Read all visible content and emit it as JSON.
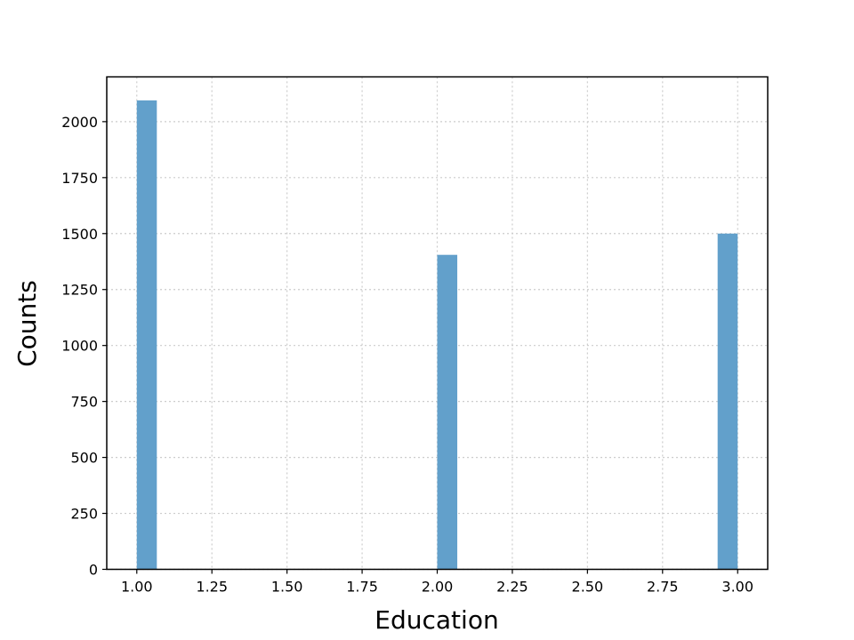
{
  "chart_data": {
    "type": "bar",
    "title": "",
    "xlabel": "Education",
    "ylabel": "Counts",
    "xlim": [
      0.9,
      3.1
    ],
    "ylim": [
      0,
      2200
    ],
    "bin_width": 0.0667,
    "bars": [
      {
        "x": 1.0,
        "value": 2095
      },
      {
        "x": 2.0,
        "value": 1405
      },
      {
        "x": 2.9333,
        "value": 1500
      }
    ],
    "x_ticks": [
      "1.00",
      "1.25",
      "1.50",
      "1.75",
      "2.00",
      "2.25",
      "2.50",
      "2.75",
      "3.00"
    ],
    "y_ticks": [
      "0",
      "250",
      "500",
      "750",
      "1000",
      "1250",
      "1500",
      "1750",
      "2000"
    ],
    "grid": true,
    "bar_color": "#62a0cb",
    "grid_color": "#cccccc"
  }
}
